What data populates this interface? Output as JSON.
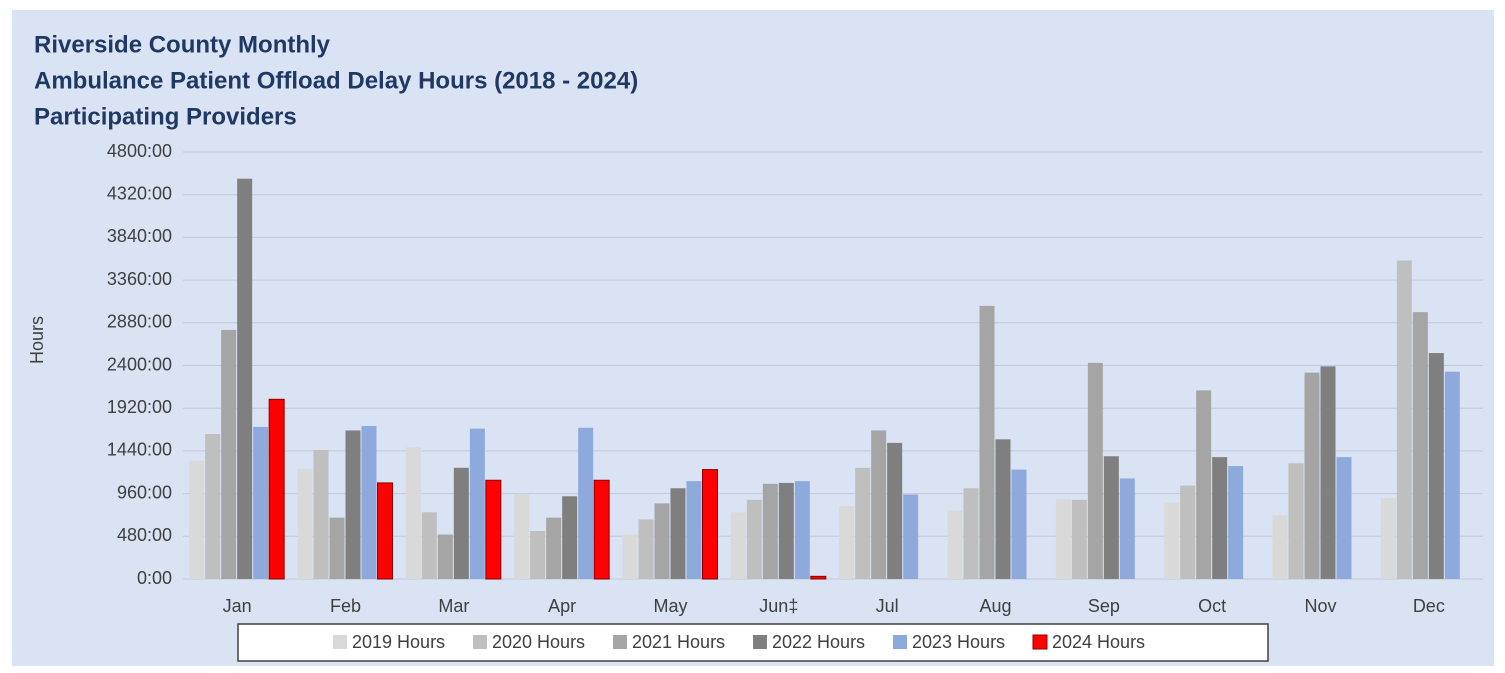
{
  "chart_data": {
    "type": "bar",
    "title": [
      "Riverside County Monthly",
      "Ambulance Patient Offload Delay Hours (2018 - 2024)",
      "Participating Providers"
    ],
    "y_label": "Hours",
    "categories": [
      "Jan",
      "Feb",
      "Mar",
      "Apr",
      "May",
      "Jun‡",
      "Jul",
      "Aug",
      "Sep",
      "Oct",
      "Nov",
      "Dec"
    ],
    "series": [
      {
        "name": "2019 Hours",
        "color": "#d9d9d9",
        "values": [
          1330,
          1240,
          1480,
          950,
          500,
          750,
          820,
          770,
          900,
          860,
          720,
          910
        ]
      },
      {
        "name": "2020 Hours",
        "color": "#bfbfbf",
        "values": [
          1630,
          1450,
          750,
          540,
          670,
          890,
          1250,
          1020,
          890,
          1050,
          1300,
          3580
        ]
      },
      {
        "name": "2021 Hours",
        "color": "#a5a5a5",
        "values": [
          2800,
          690,
          500,
          690,
          850,
          1070,
          1670,
          3070,
          2430,
          2120,
          2320,
          3000
        ]
      },
      {
        "name": "2022 Hours",
        "color": "#7f7f7f",
        "values": [
          4500,
          1670,
          1250,
          930,
          1020,
          1080,
          1530,
          1570,
          1380,
          1370,
          2390,
          2540
        ]
      },
      {
        "name": "2023 Hours",
        "color": "#8eaadc",
        "values": [
          1710,
          1720,
          1690,
          1700,
          1100,
          1100,
          950,
          1230,
          1130,
          1270,
          1370,
          2330
        ]
      },
      {
        "name": "2024 Hours",
        "color": "#ff0000",
        "values": [
          2020,
          1080,
          1110,
          1110,
          1230,
          30,
          null,
          null,
          null,
          null,
          null,
          null
        ]
      }
    ],
    "ylim": [
      0,
      4800
    ],
    "yticks": [
      {
        "value": 0,
        "label": "0:00"
      },
      {
        "value": 480,
        "label": "480:00"
      },
      {
        "value": 960,
        "label": "960:00"
      },
      {
        "value": 1440,
        "label": "1440:00"
      },
      {
        "value": 1920,
        "label": "1920:00"
      },
      {
        "value": 2400,
        "label": "2400:00"
      },
      {
        "value": 2880,
        "label": "2880:00"
      },
      {
        "value": 3360,
        "label": "3360:00"
      },
      {
        "value": 3840,
        "label": "3840:00"
      },
      {
        "value": 4320,
        "label": "4320:00"
      },
      {
        "value": 4800,
        "label": "4800:00"
      }
    ],
    "grid": true,
    "legend": "bottom"
  }
}
